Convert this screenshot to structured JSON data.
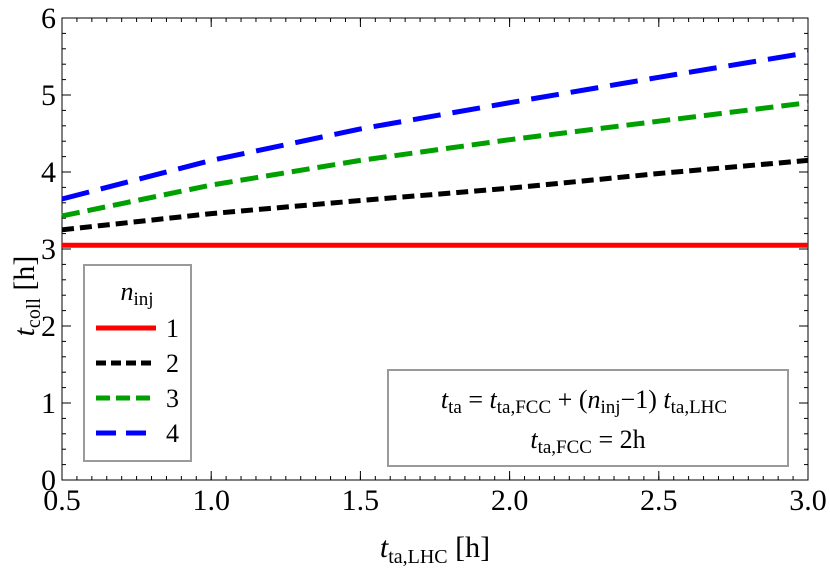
{
  "chart_data": {
    "type": "line",
    "title": "",
    "xlabel": {
      "main": "t",
      "sub": "ta,LHC",
      "unit": " [h]"
    },
    "ylabel": {
      "main": "t",
      "sub": "coll",
      "unit": " [h]"
    },
    "xlim": [
      0.5,
      3.0
    ],
    "ylim": [
      0,
      6
    ],
    "xticks": [
      "0.5",
      "1.0",
      "1.5",
      "2.0",
      "2.5",
      "3.0"
    ],
    "yticks": [
      "0",
      "1",
      "2",
      "3",
      "4",
      "5",
      "6"
    ],
    "grid": false,
    "legend": {
      "placement": "bottom-left",
      "title": {
        "main": "n",
        "sub": "inj"
      },
      "entries": [
        "1",
        "2",
        "3",
        "4"
      ]
    },
    "series": [
      {
        "name": "1",
        "color": "#ff0000",
        "dash": "solid",
        "x": [
          0.5,
          3.0
        ],
        "y": [
          3.05,
          3.05
        ]
      },
      {
        "name": "2",
        "color": "#000000",
        "dash": "short-dash",
        "x": [
          0.5,
          1.0,
          1.5,
          2.0,
          2.5,
          3.0
        ],
        "y": [
          3.25,
          3.46,
          3.63,
          3.79,
          3.98,
          4.15
        ]
      },
      {
        "name": "3",
        "color": "#00a000",
        "dash": "medium-dash",
        "x": [
          0.5,
          1.0,
          1.5,
          2.0,
          2.5,
          3.0
        ],
        "y": [
          3.43,
          3.83,
          4.15,
          4.42,
          4.66,
          4.9
        ]
      },
      {
        "name": "4",
        "color": "#0000ff",
        "dash": "long-dash",
        "x": [
          0.5,
          1.0,
          1.5,
          2.0,
          2.5,
          3.0
        ],
        "y": [
          3.65,
          4.15,
          4.56,
          4.9,
          5.23,
          5.55
        ]
      }
    ],
    "annotation": {
      "line1": {
        "t1": "t",
        "s1": "ta",
        "eq": " = ",
        "t2": "t",
        "s2": "ta,FCC",
        "plus": " + (",
        "n": "n",
        "s3": "inj",
        "minus": "−1) ",
        "t3": "t",
        "s4": "ta,LHC"
      },
      "line2": {
        "t": "t",
        "s": "ta,FCC",
        "rest": " = 2h"
      }
    }
  }
}
